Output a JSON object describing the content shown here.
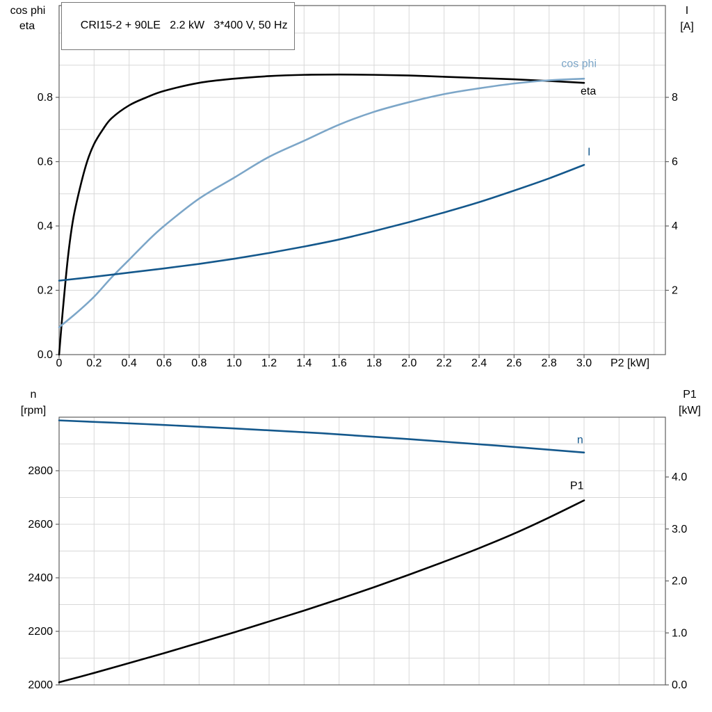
{
  "colors": {
    "frame": "#5f5f5f",
    "grid": "#d8d8d8",
    "text": "#000000",
    "light_blue": "#7CA6C8",
    "dark_blue": "#14588C",
    "black": "#000000"
  },
  "chart_data": [
    {
      "type": "line",
      "title": "CRI15-2 + 90LE   2.2 kW   3*400 V, 50 Hz",
      "x_label": "P2 [kW]",
      "x_range": [
        0,
        3.47
      ],
      "x_tick_labels": [
        "0",
        "0.2",
        "0.4",
        "0.6",
        "0.8",
        "1.0",
        "1.2",
        "1.4",
        "1.6",
        "1.8",
        "2.0",
        "2.2",
        "2.4",
        "2.6",
        "2.8",
        "3.0"
      ],
      "grid": true,
      "legend_position": "inline-labels",
      "left_axis": {
        "title_lines": [
          "cos phi",
          "eta"
        ],
        "tick_labels": [
          "0.0",
          "0.2",
          "0.4",
          "0.6",
          "0.8"
        ],
        "range": [
          0,
          1.0
        ]
      },
      "right_axis": {
        "title_lines": [
          "I",
          "[A]"
        ],
        "tick_labels": [
          "2",
          "4",
          "6",
          "8"
        ],
        "range": [
          0,
          10
        ]
      },
      "series": [
        {
          "name": "eta",
          "axis": "left",
          "color": "#000000",
          "label_at": {
            "x": 2.98,
            "y": 0.82
          },
          "x": [
            0,
            0.02,
            0.05,
            0.08,
            0.12,
            0.16,
            0.2,
            0.25,
            0.3,
            0.4,
            0.5,
            0.6,
            0.8,
            1.0,
            1.2,
            1.4,
            1.6,
            1.8,
            2.0,
            2.2,
            2.4,
            2.6,
            2.8,
            3.0
          ],
          "y": [
            0,
            0.13,
            0.3,
            0.42,
            0.52,
            0.6,
            0.655,
            0.7,
            0.735,
            0.775,
            0.8,
            0.82,
            0.845,
            0.858,
            0.866,
            0.87,
            0.871,
            0.87,
            0.868,
            0.864,
            0.86,
            0.856,
            0.851,
            0.845
          ]
        },
        {
          "name": "cos phi",
          "axis": "left",
          "color": "#7CA6C8",
          "label_at": {
            "x": 2.87,
            "y": 0.905
          },
          "x": [
            0,
            0.1,
            0.2,
            0.3,
            0.4,
            0.5,
            0.6,
            0.8,
            1.0,
            1.2,
            1.4,
            1.6,
            1.8,
            2.0,
            2.2,
            2.4,
            2.6,
            2.8,
            3.0
          ],
          "y": [
            0.085,
            0.13,
            0.18,
            0.24,
            0.295,
            0.35,
            0.4,
            0.485,
            0.55,
            0.615,
            0.665,
            0.715,
            0.755,
            0.785,
            0.81,
            0.828,
            0.843,
            0.853,
            0.858
          ]
        },
        {
          "name": "I",
          "axis": "right",
          "color": "#14588C",
          "label_at": {
            "x": 3.02,
            "y": 6.3
          },
          "x": [
            0,
            0.2,
            0.4,
            0.6,
            0.8,
            1.0,
            1.2,
            1.4,
            1.6,
            1.8,
            2.0,
            2.2,
            2.4,
            2.6,
            2.8,
            3.0
          ],
          "y": [
            2.3,
            2.42,
            2.55,
            2.68,
            2.82,
            2.98,
            3.16,
            3.36,
            3.58,
            3.84,
            4.12,
            4.42,
            4.74,
            5.1,
            5.48,
            5.9
          ]
        }
      ]
    },
    {
      "type": "line",
      "title": "",
      "x_label": "",
      "x_range": [
        0,
        3.47
      ],
      "x_tick_labels": [],
      "grid": true,
      "legend_position": "inline-labels",
      "left_axis": {
        "title_lines": [
          "n",
          "[rpm]"
        ],
        "tick_labels": [
          "2000",
          "2200",
          "2400",
          "2600",
          "2800"
        ],
        "range": [
          2000,
          3000
        ]
      },
      "right_axis": {
        "title_lines": [
          "P1",
          "[kW]"
        ],
        "tick_labels": [
          "0.0",
          "1.0",
          "2.0",
          "3.0",
          "4.0"
        ],
        "range": [
          0,
          5.15
        ]
      },
      "series": [
        {
          "name": "n",
          "axis": "left",
          "color": "#14588C",
          "label_at": {
            "x": 2.96,
            "y": 2915
          },
          "x": [
            0,
            0.5,
            1.0,
            1.5,
            2.0,
            2.5,
            3.0
          ],
          "y": [
            2988,
            2974,
            2958,
            2940,
            2918,
            2894,
            2868
          ]
        },
        {
          "name": "P1",
          "axis": "right",
          "color": "#000000",
          "label_at": {
            "x": 2.92,
            "y": 3.83
          },
          "x": [
            0,
            0.2,
            0.4,
            0.6,
            0.8,
            1.0,
            1.2,
            1.4,
            1.6,
            1.8,
            2.0,
            2.2,
            2.4,
            2.6,
            2.8,
            3.0
          ],
          "y": [
            0.05,
            0.23,
            0.42,
            0.61,
            0.81,
            1.01,
            1.22,
            1.43,
            1.65,
            1.88,
            2.12,
            2.37,
            2.63,
            2.91,
            3.22,
            3.55
          ]
        }
      ]
    }
  ]
}
